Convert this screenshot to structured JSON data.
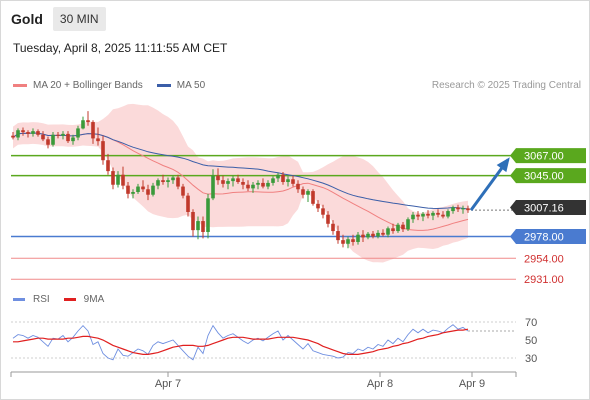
{
  "header": {
    "title": "Gold",
    "timeframe": "30 MIN",
    "datetime": "Tuesday, April 8, 2025 11:11:55 AM CET"
  },
  "legend": {
    "ma20_label": "MA 20 + Bollinger Bands",
    "ma50_label": "MA 50",
    "research": "Research © 2025 Trading Central"
  },
  "rsi_legend": {
    "rsi_label": "RSI",
    "ma9_label": "9MA"
  },
  "colors": {
    "ma20": "#f08080",
    "ma50": "#3b5ea8",
    "up_candle": "#3a9a3a",
    "down_candle": "#c0392b",
    "resistance": "#5aa81e",
    "pivot": "#4a7bd0",
    "support": "#f08a8a",
    "rsi": "#6f8fe0",
    "rsi_ma": "#e02020",
    "arrow": "#2e6fb8"
  },
  "chart_data": {
    "type": "candlestick",
    "x_labels": [
      "Apr 7",
      "Apr 8",
      "Apr 9"
    ],
    "price_range": [
      2918,
      3136
    ],
    "current_price": "3007.16",
    "levels": [
      {
        "label": "3067.00",
        "value": 3067,
        "kind": "resistance"
      },
      {
        "label": "3045.00",
        "value": 3045,
        "kind": "resistance"
      },
      {
        "label": "2978.00",
        "value": 2978,
        "kind": "pivot"
      },
      {
        "label": "2954.00",
        "value": 2954,
        "kind": "support"
      },
      {
        "label": "2931.00",
        "value": 2931,
        "kind": "support"
      }
    ],
    "forecast_target": 3067,
    "ohlc": [
      [
        3089,
        3093,
        3085,
        3087
      ],
      [
        3087,
        3097,
        3084,
        3095
      ],
      [
        3095,
        3098,
        3089,
        3093
      ],
      [
        3093,
        3095,
        3087,
        3091
      ],
      [
        3091,
        3097,
        3088,
        3094
      ],
      [
        3094,
        3096,
        3088,
        3090
      ],
      [
        3090,
        3094,
        3083,
        3085
      ],
      [
        3085,
        3088,
        3075,
        3079
      ],
      [
        3079,
        3093,
        3077,
        3090
      ],
      [
        3090,
        3093,
        3086,
        3089
      ],
      [
        3089,
        3094,
        3085,
        3091
      ],
      [
        3091,
        3094,
        3081,
        3083
      ],
      [
        3083,
        3090,
        3079,
        3087
      ],
      [
        3087,
        3100,
        3084,
        3097
      ],
      [
        3097,
        3110,
        3096,
        3106
      ],
      [
        3106,
        3116,
        3100,
        3104
      ],
      [
        3104,
        3106,
        3080,
        3086
      ],
      [
        3086,
        3098,
        3078,
        3083
      ],
      [
        3083,
        3089,
        3057,
        3062
      ],
      [
        3062,
        3069,
        3046,
        3050
      ],
      [
        3050,
        3054,
        3030,
        3035
      ],
      [
        3035,
        3050,
        3032,
        3046
      ],
      [
        3046,
        3055,
        3030,
        3034
      ],
      [
        3034,
        3038,
        3020,
        3025
      ],
      [
        3025,
        3030,
        3020,
        3027
      ],
      [
        3027,
        3036,
        3025,
        3033
      ],
      [
        3033,
        3040,
        3027,
        3030
      ],
      [
        3030,
        3035,
        3018,
        3024
      ],
      [
        3024,
        3037,
        3022,
        3034
      ],
      [
        3034,
        3042,
        3030,
        3040
      ],
      [
        3040,
        3046,
        3035,
        3038
      ],
      [
        3038,
        3043,
        3032,
        3040
      ],
      [
        3040,
        3045,
        3036,
        3043
      ],
      [
        3043,
        3046,
        3030,
        3033
      ],
      [
        3033,
        3036,
        3020,
        3023
      ],
      [
        3023,
        3026,
        3000,
        3005
      ],
      [
        3005,
        3008,
        2978,
        2985
      ],
      [
        2985,
        3000,
        2975,
        2995
      ],
      [
        2995,
        3000,
        2976,
        2983
      ],
      [
        2983,
        3025,
        2976,
        3020
      ],
      [
        3020,
        3052,
        3018,
        3045
      ],
      [
        3045,
        3053,
        3035,
        3040
      ],
      [
        3040,
        3045,
        3032,
        3036
      ],
      [
        3036,
        3042,
        3030,
        3039
      ],
      [
        3039,
        3045,
        3033,
        3042
      ],
      [
        3042,
        3046,
        3036,
        3038
      ],
      [
        3038,
        3042,
        3030,
        3035
      ],
      [
        3035,
        3040,
        3028,
        3031
      ],
      [
        3031,
        3038,
        3026,
        3035
      ],
      [
        3035,
        3040,
        3030,
        3037
      ],
      [
        3037,
        3042,
        3031,
        3033
      ],
      [
        3033,
        3040,
        3030,
        3037
      ],
      [
        3037,
        3044,
        3034,
        3042
      ],
      [
        3042,
        3048,
        3038,
        3046
      ],
      [
        3046,
        3049,
        3035,
        3038
      ],
      [
        3038,
        3044,
        3033,
        3041
      ],
      [
        3041,
        3045,
        3033,
        3036
      ],
      [
        3036,
        3040,
        3026,
        3030
      ],
      [
        3030,
        3033,
        3020,
        3024
      ],
      [
        3024,
        3030,
        3016,
        3028
      ],
      [
        3028,
        3030,
        3012,
        3014
      ],
      [
        3014,
        3018,
        3005,
        3009
      ],
      [
        3009,
        3013,
        2998,
        3002
      ],
      [
        3002,
        3006,
        2988,
        2992
      ],
      [
        2992,
        2996,
        2980,
        2984
      ],
      [
        2984,
        2990,
        2970,
        2974
      ],
      [
        2974,
        2980,
        2966,
        2970
      ],
      [
        2970,
        2978,
        2965,
        2975
      ],
      [
        2975,
        2980,
        2968,
        2972
      ],
      [
        2972,
        2983,
        2969,
        2980
      ],
      [
        2980,
        2985,
        2972,
        2977
      ],
      [
        2977,
        2983,
        2975,
        2981
      ],
      [
        2981,
        2984,
        2976,
        2978
      ],
      [
        2978,
        2985,
        2976,
        2982
      ],
      [
        2982,
        2986,
        2978,
        2980
      ],
      [
        2980,
        2989,
        2977,
        2987
      ],
      [
        2987,
        2992,
        2981,
        2984
      ],
      [
        2984,
        2993,
        2982,
        2991
      ],
      [
        2991,
        2994,
        2983,
        2986
      ],
      [
        2986,
        2999,
        2984,
        2997
      ],
      [
        2997,
        3005,
        2993,
        3002
      ],
      [
        3002,
        3006,
        2996,
        3000
      ],
      [
        3000,
        3005,
        2995,
        3003
      ],
      [
        3003,
        3007,
        2998,
        3001
      ],
      [
        3001,
        3006,
        2996,
        3004
      ],
      [
        3004,
        3008,
        2999,
        3002
      ],
      [
        3002,
        3006,
        2998,
        3000
      ],
      [
        3000,
        3008,
        2998,
        3006
      ],
      [
        3006,
        3012,
        3003,
        3010
      ],
      [
        3010,
        3013,
        3005,
        3008
      ],
      [
        3008,
        3012,
        3003,
        3009
      ],
      [
        3009,
        3012,
        3004,
        3007
      ]
    ],
    "rsi_axis": [
      70,
      50,
      30
    ],
    "rsi": [
      52,
      56,
      55,
      52,
      55,
      53,
      48,
      43,
      52,
      51,
      55,
      48,
      53,
      60,
      66,
      60,
      45,
      48,
      35,
      30,
      28,
      40,
      33,
      32,
      36,
      40,
      38,
      34,
      44,
      48,
      46,
      48,
      50,
      44,
      38,
      32,
      28,
      42,
      35,
      55,
      66,
      58,
      52,
      55,
      57,
      53,
      49,
      46,
      50,
      52,
      49,
      53,
      57,
      60,
      50,
      55,
      50,
      45,
      40,
      46,
      38,
      36,
      34,
      33,
      32,
      30,
      31,
      36,
      35,
      40,
      38,
      42,
      40,
      45,
      43,
      50,
      46,
      52,
      48,
      56,
      62,
      58,
      62,
      58,
      61,
      60,
      58,
      63,
      67,
      62,
      64,
      60
    ],
    "rsi_ma": [
      48,
      48,
      49,
      50,
      51,
      52,
      52,
      51,
      51,
      51,
      51,
      52,
      52,
      53,
      54,
      54,
      53,
      52,
      50,
      47,
      44,
      42,
      40,
      38,
      36,
      35,
      34,
      34,
      35,
      36,
      38,
      40,
      42,
      43,
      44,
      44,
      44,
      43,
      43,
      44,
      46,
      48,
      50,
      52,
      53,
      53,
      53,
      52,
      51,
      51,
      51,
      51,
      52,
      53,
      53,
      53,
      53,
      52,
      51,
      50,
      48,
      46,
      43,
      41,
      39,
      37,
      35,
      34,
      34,
      34,
      35,
      36,
      37,
      39,
      40,
      41,
      43,
      44,
      46,
      47,
      49,
      51,
      52,
      54,
      55,
      56,
      58,
      59,
      60,
      61,
      61,
      62
    ]
  }
}
